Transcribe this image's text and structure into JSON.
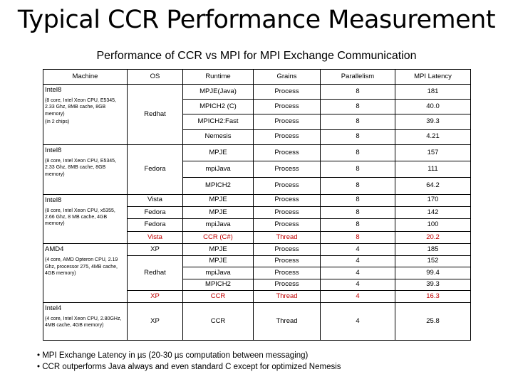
{
  "title": "Typical CCR Performance Measurement",
  "subtitle": "Performance of CCR vs MPI for MPI Exchange Communication",
  "columns": [
    "Machine",
    "OS",
    "Runtime",
    "Grains",
    "Parallelism",
    "MPI Latency"
  ],
  "machines": [
    {
      "name": "Intel8",
      "desc": "(8 core, Intel Xeon CPU, E5345, 2.33 Ghz, 8MB cache, 8GB memory)",
      "extra": "(in 2 chips)"
    },
    {
      "name": "Intel8",
      "desc": "(8 core, Intel Xeon CPU, E5345, 2.33 Ghz, 8MB cache, 8GB memory)"
    },
    {
      "name": "Intel8",
      "desc": "(8 core, Intel Xeon CPU, x5355, 2.66 Ghz, 8 MB cache, 4GB memory)"
    },
    {
      "name": "AMD4",
      "desc": "(4 core, AMD Opteron CPU, 2.19 Ghz, processor 275, 4MB cache, 4GB memory)"
    },
    {
      "name": "Intel4",
      "desc": "(4 core, Intel Xeon CPU, 2.80GHz, 4MB cache, 4GB memory)"
    }
  ],
  "os": [
    "Redhat",
    "Fedora",
    "Vista",
    "Fedora",
    "Fedora",
    "Vista",
    "XP",
    "Redhat",
    "XP",
    "XP"
  ],
  "rows": [
    {
      "runtime": "MPJE(Java)",
      "grains": "Process",
      "parallelism": "8",
      "latency": "181"
    },
    {
      "runtime": "MPICH2 (C)",
      "grains": "Process",
      "parallelism": "8",
      "latency": "40.0"
    },
    {
      "runtime": "MPICH2:Fast",
      "grains": "Process",
      "parallelism": "8",
      "latency": "39.3"
    },
    {
      "runtime": "Nemesis",
      "grains": "Process",
      "parallelism": "8",
      "latency": "4.21"
    },
    {
      "runtime": "MPJE",
      "grains": "Process",
      "parallelism": "8",
      "latency": "157"
    },
    {
      "runtime": "mpiJava",
      "grains": "Process",
      "parallelism": "8",
      "latency": "111"
    },
    {
      "runtime": "MPICH2",
      "grains": "Process",
      "parallelism": "8",
      "latency": "64.2"
    },
    {
      "runtime": "MPJE",
      "grains": "Process",
      "parallelism": "8",
      "latency": "170"
    },
    {
      "runtime": "MPJE",
      "grains": "Process",
      "parallelism": "8",
      "latency": "142"
    },
    {
      "runtime": "mpiJava",
      "grains": "Process",
      "parallelism": "8",
      "latency": "100"
    },
    {
      "runtime": "CCR (C#)",
      "grains": "Thread",
      "parallelism": "8",
      "latency": "20.2"
    },
    {
      "runtime": "MPJE",
      "grains": "Process",
      "parallelism": "4",
      "latency": "185"
    },
    {
      "runtime": "MPJE",
      "grains": "Process",
      "parallelism": "4",
      "latency": "152"
    },
    {
      "runtime": "mpiJava",
      "grains": "Process",
      "parallelism": "4",
      "latency": "99.4"
    },
    {
      "runtime": "MPICH2",
      "grains": "Process",
      "parallelism": "4",
      "latency": "39.3"
    },
    {
      "runtime": "CCR",
      "grains": "Thread",
      "parallelism": "4",
      "latency": "16.3"
    },
    {
      "runtime": "CCR",
      "grains": "Thread",
      "parallelism": "4",
      "latency": "25.8"
    }
  ],
  "bullets": [
    "• MPI Exchange Latency in µs (20-30 µs computation between messaging)",
    "• CCR outperforms Java always and even standard C except for optimized Nemesis"
  ],
  "colors": {
    "highlight": "#c00000",
    "text": "#000000"
  }
}
